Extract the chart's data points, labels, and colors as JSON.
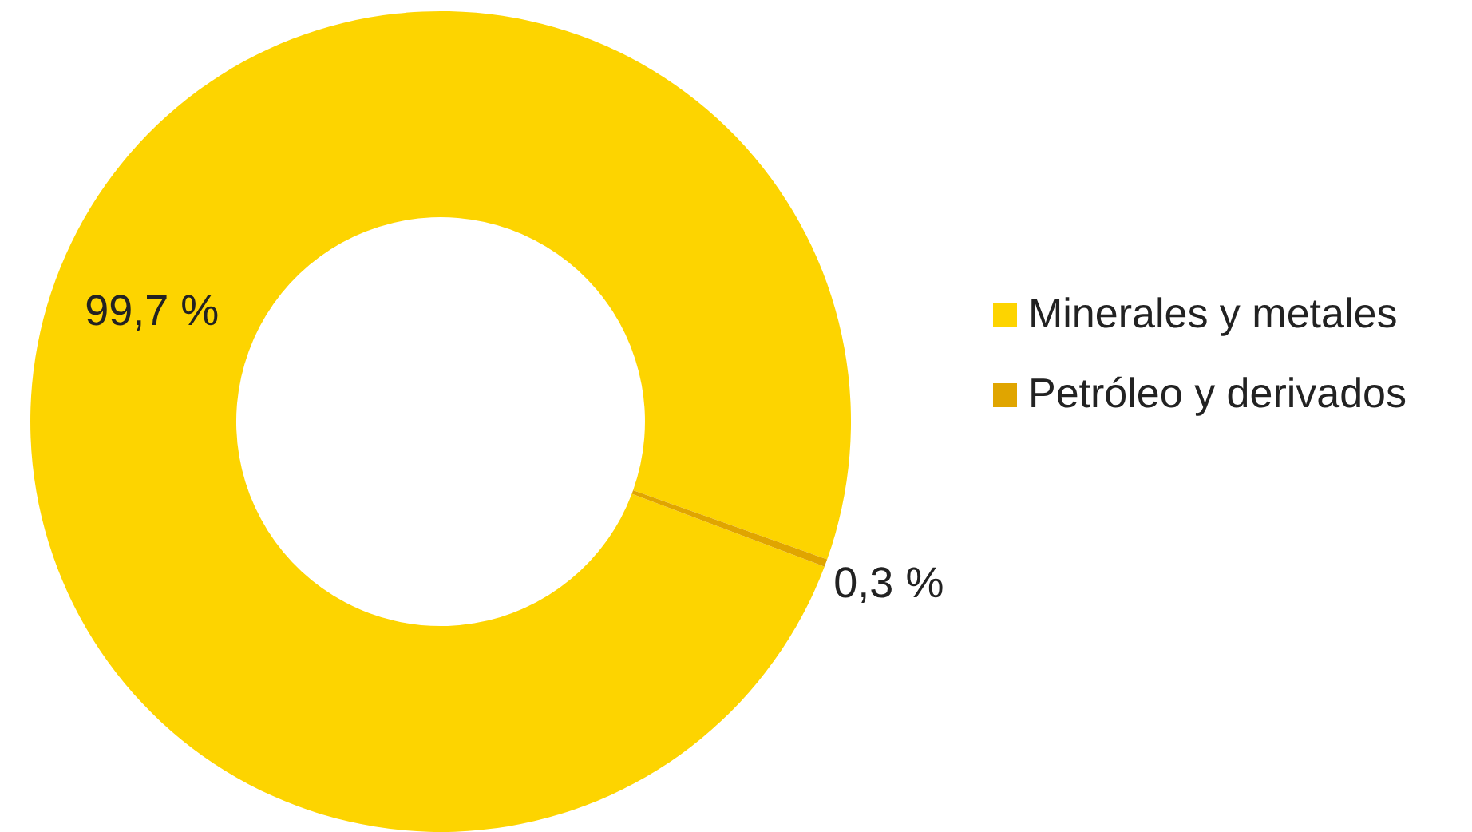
{
  "chart_data": {
    "type": "donut",
    "categories": [
      "Minerales y metales",
      "Petróleo y derivados"
    ],
    "values": [
      99.7,
      0.3
    ],
    "colors": [
      "#fdd400",
      "#e0a500"
    ],
    "value_labels": [
      "99,7 %",
      "0,3 %"
    ],
    "legend": "right"
  }
}
